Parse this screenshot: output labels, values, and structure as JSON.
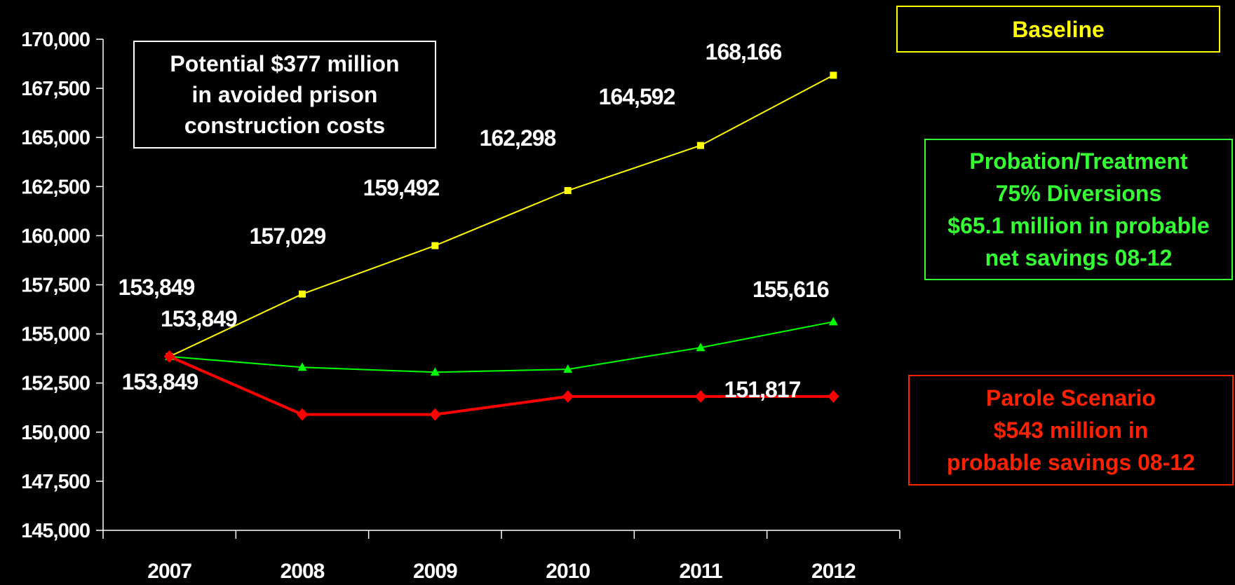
{
  "chart_data": {
    "type": "line",
    "x": [
      "2007",
      "2008",
      "2009",
      "2010",
      "2011",
      "2012"
    ],
    "ylim": [
      145000,
      170000
    ],
    "y_ticks": [
      "170,000",
      "167,500",
      "165,000",
      "162,500",
      "160,000",
      "157,500",
      "155,000",
      "152,500",
      "150,000",
      "147,500",
      "145,000"
    ],
    "y_tick_values": [
      170000,
      167500,
      165000,
      162500,
      160000,
      157500,
      155000,
      152500,
      150000,
      147500,
      145000
    ],
    "grid": false,
    "series": [
      {
        "name": "Baseline",
        "color": "#ffff00",
        "marker": "square",
        "values": [
          153849,
          157029,
          159492,
          162298,
          164592,
          168166
        ],
        "data_labels": [
          "153,849",
          "157,029",
          "159,492",
          "162,298",
          "164,592",
          "168,166"
        ]
      },
      {
        "name": "Probation/Treatment",
        "color": "#00ff00",
        "marker": "triangle",
        "values": [
          153849,
          153300,
          153050,
          153200,
          154300,
          155616
        ],
        "data_labels": [
          "153,849",
          "",
          "",
          "",
          "",
          "155,616"
        ]
      },
      {
        "name": "Parole Scenario",
        "color": "#ff0000",
        "marker": "diamond",
        "values": [
          153849,
          150900,
          150900,
          151817,
          151817,
          151817
        ],
        "data_labels": [
          "153,849",
          "",
          "",
          "",
          "",
          "151,817"
        ]
      }
    ]
  },
  "annotations": {
    "note": "Potential $377 million\nin avoided prison\nconstruction costs",
    "baseline_legend": "Baseline",
    "probation_legend": "Probation/Treatment\n75% Diversions\n$65.1 million in probable\nnet savings 08-12",
    "parole_legend": "Parole Scenario\n$543 million in\nprobable savings 08-12"
  }
}
